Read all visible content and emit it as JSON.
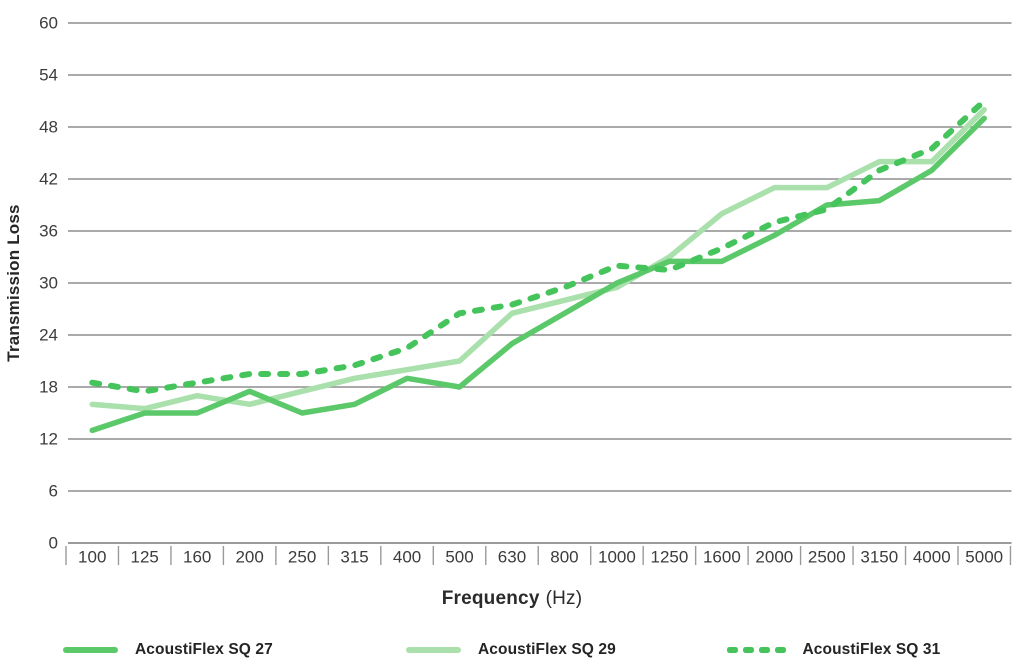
{
  "chart_data": {
    "type": "line",
    "title": "",
    "xlabel": "Frequency (Hz)",
    "ylabel": "Transmission Loss",
    "x_axis": {
      "label": "Frequency",
      "unit": "(Hz)"
    },
    "categories": [
      "100",
      "125",
      "160",
      "200",
      "250",
      "315",
      "400",
      "500",
      "630",
      "800",
      "1000",
      "1250",
      "1600",
      "2000",
      "2500",
      "3150",
      "4000",
      "5000"
    ],
    "yticks": [
      0,
      6,
      12,
      18,
      24,
      30,
      36,
      42,
      48,
      54,
      60
    ],
    "ylim": [
      0,
      60
    ],
    "grid": "horizontal",
    "legend_position": "bottom",
    "series": [
      {
        "name": "AcoustiFlex SQ 27",
        "style": "solid",
        "color": "#5bc86a",
        "values": [
          13,
          15,
          15,
          17.5,
          15,
          16,
          19,
          18,
          23,
          26.5,
          30,
          32.5,
          32.5,
          35.5,
          39,
          39.5,
          43,
          49
        ]
      },
      {
        "name": "AcoustiFlex SQ 29",
        "style": "solid",
        "color": "#a9e0ac",
        "values": [
          16,
          15.5,
          17,
          16,
          17.5,
          19,
          20,
          21,
          26.5,
          28,
          29.5,
          33,
          38,
          41,
          41,
          44,
          44,
          50
        ]
      },
      {
        "name": "AcoustiFlex SQ 31",
        "style": "dashed",
        "color": "#45c45b",
        "values": [
          18.5,
          17.5,
          18.5,
          19.5,
          19.5,
          20.5,
          22.5,
          26.5,
          27.5,
          29.5,
          32,
          31.5,
          34,
          37,
          38.5,
          43,
          45.5,
          51
        ]
      }
    ],
    "colors": {
      "grid": "#8d8d8d",
      "tick": "#9a9a9a",
      "text": "#3c3c3c"
    }
  }
}
